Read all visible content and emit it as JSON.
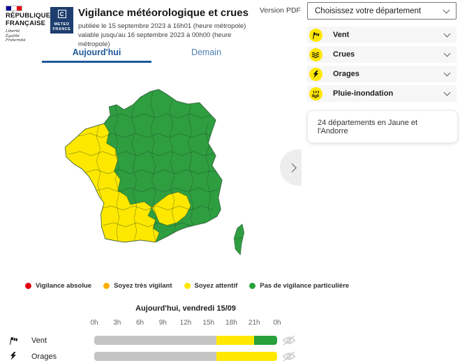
{
  "colors": {
    "accent_blue": "#1e5a9a",
    "navy": "#1d3e6e",
    "vigilance_green": "#2f9e41",
    "vigilance_yellow": "#ffe800",
    "bar_gray": "#c4c4c4"
  },
  "header": {
    "brand": {
      "line1": "RÉPUBLIQUE",
      "line2": "FRANÇAISE",
      "motto1": "Liberté",
      "motto2": "Égalité",
      "motto3": "Fraternité"
    },
    "meteo_logo": {
      "line1": "METEO",
      "line2": "FRANCE"
    },
    "title": "Vigilance météorologique et crues",
    "published": "publiée le 15 septembre 2023 à 16h01 (heure métropole)",
    "valid": "valable jusqu'au 16 septembre 2023 à 00h00 (heure métropole)",
    "version_pdf": "Version PDF",
    "department_select_placeholder": "Choisissez votre département"
  },
  "tabs": [
    {
      "label": "Aujourd'hui",
      "active": true
    },
    {
      "label": "Demain",
      "active": false
    }
  ],
  "phenomena": [
    {
      "label": "Vent",
      "icon": "windsock-icon"
    },
    {
      "label": "Crues",
      "icon": "waves-icon"
    },
    {
      "label": "Orages",
      "icon": "lightning-icon"
    },
    {
      "label": "Pluie-inondation",
      "icon": "rain-flood-icon"
    }
  ],
  "info_box": "24 départements en Jaune et l'Andorre",
  "legend": [
    {
      "label": "Vigilance absolue",
      "color": "#e1000f"
    },
    {
      "label": "Soyez très vigilant",
      "color": "#f9b000"
    },
    {
      "label": "Soyez attentif",
      "color": "#ffe800"
    },
    {
      "label": "Pas de vigilance particulière",
      "color": "#28a13c"
    }
  ],
  "timeline": {
    "title": "Aujourd'hui, vendredi 15/09",
    "hours": [
      "0h",
      "3h",
      "6h",
      "9h",
      "12h",
      "15h",
      "18h",
      "21h",
      "0h"
    ],
    "rows": [
      {
        "label": "Vent",
        "icon": "windsock-icon",
        "segments": [
          {
            "level": "none",
            "color": "#c4c4c4",
            "from": 0,
            "to": 16
          },
          {
            "level": "jaune",
            "color": "#ffe800",
            "from": 16,
            "to": 21
          },
          {
            "level": "vert",
            "color": "#28a13c",
            "from": 21,
            "to": 24
          }
        ]
      },
      {
        "label": "Orages",
        "icon": "lightning-icon",
        "segments": [
          {
            "level": "none",
            "color": "#c4c4c4",
            "from": 0,
            "to": 16
          },
          {
            "level": "jaune",
            "color": "#ffe800",
            "from": 16,
            "to": 24
          }
        ]
      }
    ]
  }
}
